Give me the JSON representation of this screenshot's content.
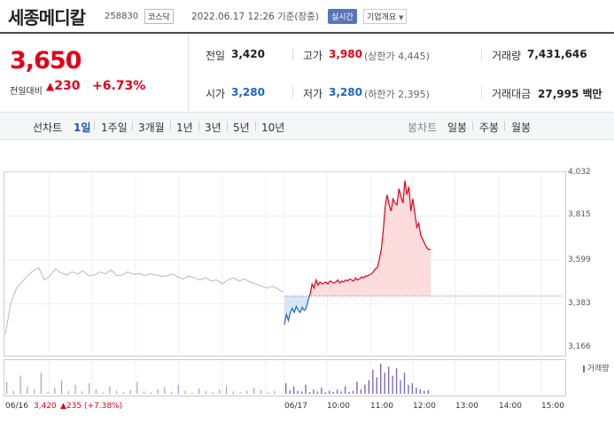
{
  "header": {
    "title": "세종메디칼",
    "code": "258830",
    "market": "코스닥",
    "datetime": "2022.06.17 12:26 기준(장중)",
    "realtime_label": "실시간",
    "company_info_label": "기업개요",
    "company_info_icon": "chevron-down-icon"
  },
  "quote": {
    "price": "3,650",
    "change_label": "전일대비",
    "change_icon": "up-triangle-icon",
    "change_value": "230",
    "change_pct": "+6.73%",
    "color_up": "#e0001b",
    "color_down": "#1f66c1"
  },
  "stats": {
    "prev_label": "전일",
    "prev_value": "3,420",
    "high_label": "고가",
    "high_value": "3,980",
    "upper_limit": "(상한가 4,445)",
    "volume_label": "거래량",
    "volume_value": "7,431,646",
    "open_label": "시가",
    "open_value": "3,280",
    "low_label": "저가",
    "low_value": "3,280",
    "lower_limit": "(하한가 2,395)",
    "amount_label": "거래대금",
    "amount_value": "27,995 백만"
  },
  "tabs": {
    "line_label": "선차트",
    "line_periods": [
      "1일",
      "1주일",
      "3개월",
      "1년",
      "3년",
      "5년",
      "10년"
    ],
    "line_active": "1일",
    "candle_label": "봉차트",
    "candle_periods": [
      "일봉",
      "주봉",
      "월봉"
    ]
  },
  "chart_data": {
    "type": "line",
    "y_ticks": [
      "4,032",
      "3,815",
      "3,599",
      "3,383",
      "3,166"
    ],
    "ylim": [
      3166,
      4032
    ],
    "x_ticks": [
      "06/16",
      "06/17",
      "10:00",
      "11:00",
      "12:00",
      "13:00",
      "14:00",
      "15:00"
    ],
    "prev_close": 3420,
    "prev_day_label": "06/16",
    "prev_day_close": "3,420",
    "prev_day_change": "▲235 (+7.38%)",
    "volume_legend": "거래량",
    "series": [
      {
        "x": [
          0,
          2,
          4,
          6,
          8,
          10,
          12,
          14,
          16,
          18,
          20,
          22,
          24,
          26,
          28,
          30,
          32,
          34,
          36,
          38,
          40,
          42,
          44,
          46,
          48,
          50,
          52,
          54,
          56,
          58,
          60,
          62,
          64,
          66,
          68,
          70,
          72,
          74,
          76,
          78,
          80,
          82,
          84,
          86,
          88,
          90,
          92,
          94,
          96,
          98,
          100
        ],
        "y": [
          3230,
          3390,
          3460,
          3490,
          3520,
          3545,
          3560,
          3500,
          3520,
          3555,
          3535,
          3525,
          3540,
          3530,
          3545,
          3520,
          3525,
          3540,
          3530,
          3550,
          3520,
          3525,
          3540,
          3528,
          3532,
          3522,
          3530,
          3525,
          3518,
          3520,
          3530,
          3514,
          3505,
          3520,
          3510,
          3500,
          3512,
          3495,
          3500,
          3480,
          3500,
          3510,
          3495,
          3505,
          3490,
          3480,
          3470,
          3460,
          3470,
          3455,
          3440
        ]
      },
      {
        "x": [
          0,
          1,
          2,
          3,
          4,
          5,
          6,
          7,
          8,
          9,
          10,
          11,
          12,
          13,
          14,
          15,
          16,
          17,
          18,
          19,
          20,
          21,
          22,
          23,
          24,
          25,
          26,
          27,
          28,
          29,
          30,
          31,
          32,
          33,
          34,
          35,
          36,
          37,
          38,
          39,
          40,
          41,
          42,
          43,
          44,
          45,
          46,
          47,
          48,
          49,
          50,
          51,
          52,
          53,
          54,
          55,
          56,
          57,
          58,
          59,
          60,
          61,
          62,
          63,
          64,
          65,
          66,
          67,
          68,
          69,
          70,
          71,
          72,
          73,
          74
        ],
        "y": [
          3280,
          3330,
          3300,
          3340,
          3360,
          3340,
          3370,
          3350,
          3340,
          3365,
          3350,
          3360,
          3400,
          3430,
          3480,
          3460,
          3500,
          3475,
          3490,
          3480,
          3485,
          3490,
          3480,
          3495,
          3490,
          3485,
          3490,
          3500,
          3485,
          3495,
          3490,
          3500,
          3495,
          3505,
          3500,
          3495,
          3510,
          3500,
          3505,
          3515,
          3510,
          3520,
          3520,
          3525,
          3530,
          3540,
          3555,
          3560,
          3600,
          3650,
          3740,
          3860,
          3920,
          3870,
          3840,
          3900,
          3880,
          3870,
          3950,
          3910,
          3880,
          3990,
          3920,
          3960,
          3840,
          3900,
          3830,
          3760,
          3780,
          3720,
          3700,
          3680,
          3660,
          3650,
          3650
        ]
      }
    ],
    "volume": {
      "prev": [
        40,
        10,
        60,
        25,
        15,
        70,
        5,
        20,
        45,
        10,
        30,
        8,
        35,
        15,
        5,
        25,
        10,
        6,
        12,
        40,
        8,
        5,
        15,
        22,
        7,
        30,
        10,
        4,
        18,
        9,
        5,
        14,
        25,
        8,
        6,
        10,
        20,
        12,
        5,
        9
      ],
      "today": [
        35,
        12,
        25,
        10,
        8,
        30,
        6,
        15,
        8,
        20,
        5,
        10,
        6,
        14,
        8,
        25,
        6,
        10,
        40,
        15,
        30,
        45,
        80,
        55,
        100,
        70,
        90,
        60,
        85,
        45,
        70,
        30,
        35,
        20,
        15,
        10,
        12
      ]
    }
  }
}
